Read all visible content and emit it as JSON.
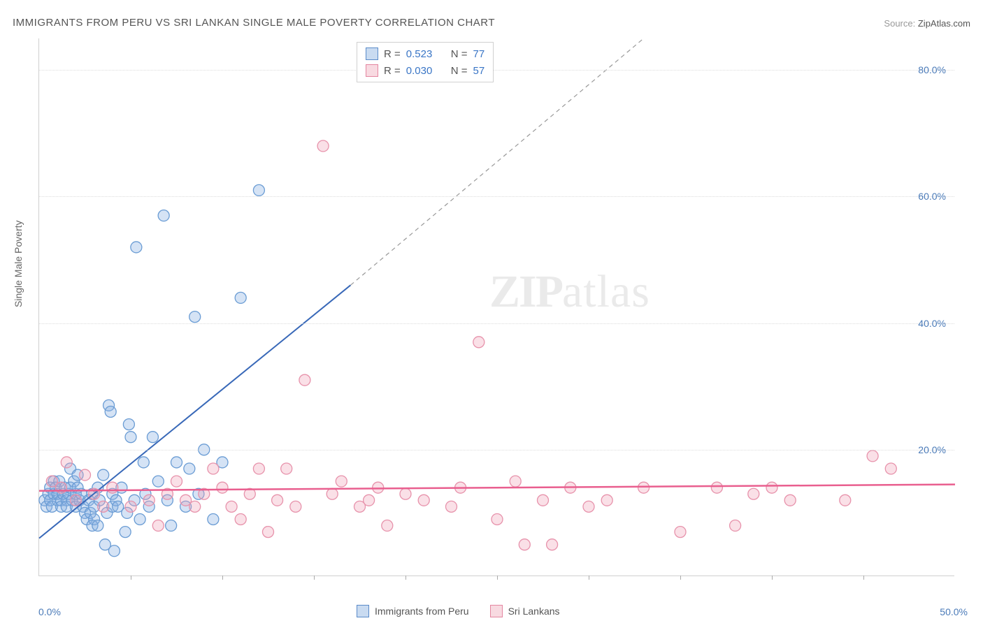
{
  "title": "IMMIGRANTS FROM PERU VS SRI LANKAN SINGLE MALE POVERTY CORRELATION CHART",
  "source_label": "Source:",
  "source_value": "ZipAtlas.com",
  "y_axis_label": "Single Male Poverty",
  "watermark": {
    "part1": "ZIP",
    "part2": "atlas"
  },
  "chart": {
    "type": "scatter",
    "xlim": [
      0,
      50
    ],
    "ylim": [
      0,
      85
    ],
    "x_ticks": [
      0,
      50
    ],
    "y_ticks": [
      20,
      40,
      60,
      80
    ],
    "x_tick_labels": [
      "0.0%",
      "50.0%"
    ],
    "y_tick_labels": [
      "20.0%",
      "40.0%",
      "60.0%",
      "80.0%"
    ],
    "minor_x_ticks": [
      5,
      10,
      15,
      20,
      25,
      30,
      35,
      40,
      45
    ],
    "grid_color": "#dcdcdc",
    "background_color": "#ffffff",
    "series": [
      {
        "name": "Immigrants from Peru",
        "color_fill": "rgba(135,175,225,0.35)",
        "color_stroke": "#6a9cd4",
        "r_value": "0.523",
        "n_value": "77",
        "trendline": {
          "x1": 0,
          "y1": 6,
          "x2": 17,
          "y2": 46,
          "dashed_to_x": 33,
          "dashed_to_y": 85,
          "stroke": "#3868b8",
          "width": 2
        },
        "points": [
          [
            0.3,
            12
          ],
          [
            0.4,
            11
          ],
          [
            0.5,
            13
          ],
          [
            0.6,
            12
          ],
          [
            0.6,
            14
          ],
          [
            0.7,
            11
          ],
          [
            0.8,
            13
          ],
          [
            0.8,
            15
          ],
          [
            0.9,
            14
          ],
          [
            1.0,
            12
          ],
          [
            1.0,
            13
          ],
          [
            1.1,
            15
          ],
          [
            1.2,
            12
          ],
          [
            1.2,
            11
          ],
          [
            1.3,
            13
          ],
          [
            1.4,
            14
          ],
          [
            1.5,
            12
          ],
          [
            1.5,
            11
          ],
          [
            1.6,
            13
          ],
          [
            1.7,
            14
          ],
          [
            1.8,
            12
          ],
          [
            1.9,
            15
          ],
          [
            2.0,
            13
          ],
          [
            2.0,
            11
          ],
          [
            2.1,
            14
          ],
          [
            2.2,
            12
          ],
          [
            2.3,
            13
          ],
          [
            2.4,
            11
          ],
          [
            2.5,
            10
          ],
          [
            2.6,
            9
          ],
          [
            2.7,
            12
          ],
          [
            2.8,
            10
          ],
          [
            2.9,
            13
          ],
          [
            3.0,
            11
          ],
          [
            3.0,
            9
          ],
          [
            3.2,
            14
          ],
          [
            3.3,
            12
          ],
          [
            3.5,
            16
          ],
          [
            3.7,
            10
          ],
          [
            3.8,
            27
          ],
          [
            3.9,
            26
          ],
          [
            4.0,
            11
          ],
          [
            4.0,
            13
          ],
          [
            4.2,
            12
          ],
          [
            4.5,
            14
          ],
          [
            4.7,
            7
          ],
          [
            4.8,
            10
          ],
          [
            4.9,
            24
          ],
          [
            5.0,
            22
          ],
          [
            5.2,
            12
          ],
          [
            5.5,
            9
          ],
          [
            5.7,
            18
          ],
          [
            5.8,
            13
          ],
          [
            6.0,
            11
          ],
          [
            6.2,
            22
          ],
          [
            6.5,
            15
          ],
          [
            7.0,
            12
          ],
          [
            7.2,
            8
          ],
          [
            7.5,
            18
          ],
          [
            8.0,
            11
          ],
          [
            8.2,
            17
          ],
          [
            8.5,
            41
          ],
          [
            8.7,
            13
          ],
          [
            9.0,
            20
          ],
          [
            9.5,
            9
          ],
          [
            10.0,
            18
          ],
          [
            11.0,
            44
          ],
          [
            12.0,
            61
          ],
          [
            4.1,
            4
          ],
          [
            3.6,
            5
          ],
          [
            2.9,
            8
          ],
          [
            6.8,
            57
          ],
          [
            5.3,
            52
          ],
          [
            1.7,
            17
          ],
          [
            2.1,
            16
          ],
          [
            3.2,
            8
          ],
          [
            4.3,
            11
          ]
        ]
      },
      {
        "name": "Sri Lankans",
        "color_fill": "rgba(240,160,180,0.32)",
        "color_stroke": "#e792ab",
        "r_value": "0.030",
        "n_value": "57",
        "trendline": {
          "x1": 0,
          "y1": 13.5,
          "x2": 50,
          "y2": 14.5,
          "stroke": "#e95f8f",
          "width": 2.5
        },
        "points": [
          [
            0.7,
            15
          ],
          [
            1.2,
            14
          ],
          [
            2.0,
            12
          ],
          [
            2.5,
            16
          ],
          [
            3.0,
            13
          ],
          [
            3.5,
            11
          ],
          [
            4.0,
            14
          ],
          [
            5.0,
            11
          ],
          [
            6.0,
            12
          ],
          [
            6.5,
            8
          ],
          [
            7.0,
            13
          ],
          [
            7.5,
            15
          ],
          [
            8.0,
            12
          ],
          [
            8.5,
            11
          ],
          [
            9.0,
            13
          ],
          [
            9.5,
            17
          ],
          [
            10.0,
            14
          ],
          [
            10.5,
            11
          ],
          [
            11.0,
            9
          ],
          [
            11.5,
            13
          ],
          [
            12.0,
            17
          ],
          [
            13.0,
            12
          ],
          [
            13.5,
            17
          ],
          [
            14.0,
            11
          ],
          [
            14.5,
            31
          ],
          [
            15.5,
            68
          ],
          [
            16.0,
            13
          ],
          [
            16.5,
            15
          ],
          [
            17.5,
            11
          ],
          [
            18.0,
            12
          ],
          [
            18.5,
            14
          ],
          [
            19.0,
            8
          ],
          [
            20.0,
            13
          ],
          [
            21.0,
            12
          ],
          [
            22.5,
            11
          ],
          [
            23.0,
            14
          ],
          [
            24.0,
            37
          ],
          [
            25.0,
            9
          ],
          [
            26.0,
            15
          ],
          [
            26.5,
            5
          ],
          [
            27.5,
            12
          ],
          [
            28.0,
            5
          ],
          [
            29.0,
            14
          ],
          [
            31.0,
            12
          ],
          [
            33.0,
            14
          ],
          [
            35.0,
            7
          ],
          [
            37.0,
            14
          ],
          [
            38.0,
            8
          ],
          [
            39.0,
            13
          ],
          [
            40.0,
            14
          ],
          [
            41.0,
            12
          ],
          [
            44.0,
            12
          ],
          [
            45.5,
            19
          ],
          [
            46.5,
            17
          ],
          [
            1.5,
            18
          ],
          [
            12.5,
            7
          ],
          [
            30.0,
            11
          ]
        ]
      }
    ]
  },
  "legend_bottom": [
    {
      "label": "Immigrants from Peru",
      "swatch": "blue"
    },
    {
      "label": "Sri Lankans",
      "swatch": "pink"
    }
  ]
}
